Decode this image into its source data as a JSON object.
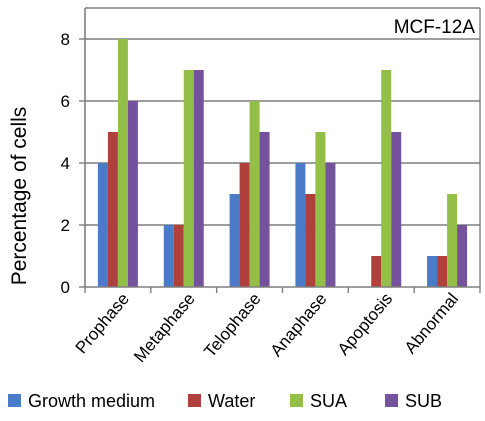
{
  "chart_data": {
    "type": "bar",
    "title": "MCF-12A",
    "xlabel": "",
    "ylabel": "Percentage of cells",
    "ylim": [
      0,
      9
    ],
    "yticks": [
      0,
      2,
      4,
      6,
      8
    ],
    "grid": "horizontal",
    "legend_position": "bottom",
    "categories": [
      "Prophase",
      "Metaphase",
      "Telophase",
      "Anaphase",
      "Apoptosis",
      "Abnormal"
    ],
    "series": [
      {
        "name": "Growth medium",
        "color": "#4a7bc8",
        "values": [
          4,
          2,
          3,
          4,
          0,
          1
        ]
      },
      {
        "name": "Water",
        "color": "#b0403b",
        "values": [
          5,
          2,
          4,
          3,
          1,
          1
        ]
      },
      {
        "name": "SUA",
        "color": "#93bf49",
        "values": [
          8,
          7,
          6,
          5,
          7,
          3
        ]
      },
      {
        "name": "SUB",
        "color": "#74529c",
        "values": [
          6,
          7,
          5,
          4,
          5,
          2
        ]
      }
    ]
  }
}
